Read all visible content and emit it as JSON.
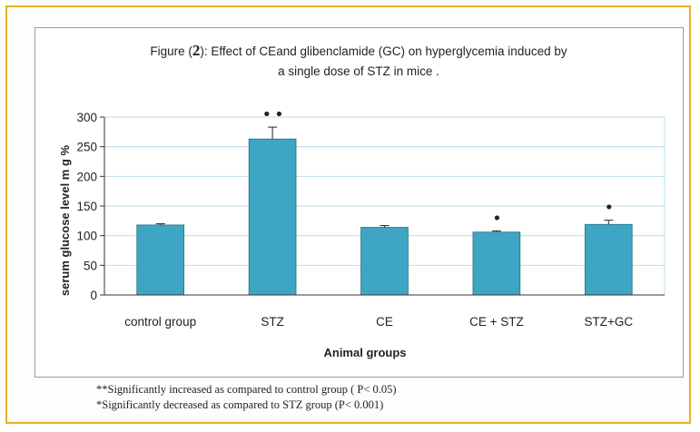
{
  "chart_data": {
    "type": "bar",
    "title_prefix": "Figure (",
    "title_number": "2",
    "title_suffix": "): Effect of CEand glibenclamide (GC) on hyperglycemia induced by",
    "title_line2": "a single dose of  STZ in mice .",
    "categories": [
      "control group",
      "STZ",
      "CE",
      "CE + STZ",
      "STZ+GC"
    ],
    "values": [
      118,
      263,
      114,
      106,
      119
    ],
    "errors": [
      2,
      20,
      3,
      2,
      7
    ],
    "markers": [
      "",
      "••",
      "",
      "•",
      "•"
    ],
    "xlabel": "Animal groups",
    "ylabel": "serum glucose level m g %",
    "ylim": [
      0,
      300
    ],
    "yticks": [
      0,
      50,
      100,
      150,
      200,
      250,
      300
    ],
    "grid": true,
    "bar_color": "#3fa5c4",
    "grid_color": "#b9dde8"
  },
  "footnotes": {
    "note1": "**Significantly increased as compared to control group ( P< 0.05)",
    "note2": "*Significantly decreased as compared to STZ group (P< 0.001)"
  }
}
